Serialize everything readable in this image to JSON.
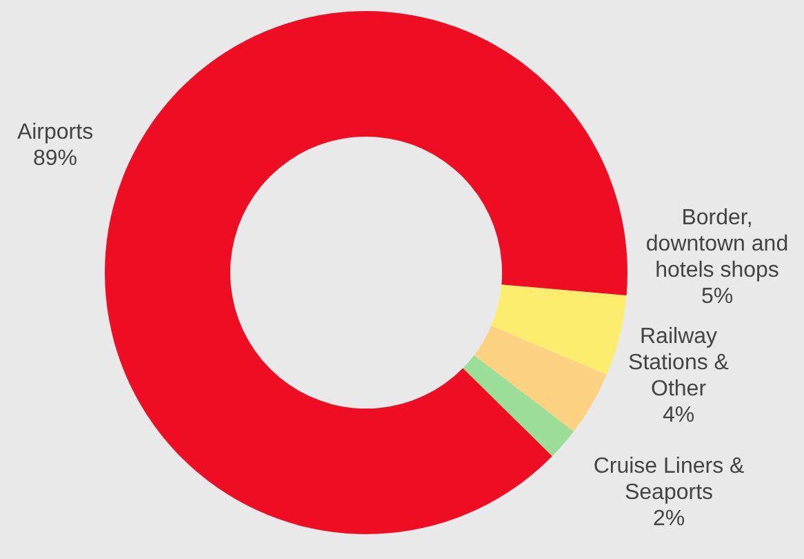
{
  "chart_data": {
    "type": "donut",
    "categories": [
      "Border, downtown and hotels shops",
      "Railway Stations & Other",
      "Cruise Liners & Seaports",
      "Airports"
    ],
    "values": [
      5,
      4,
      2,
      89
    ],
    "colors": [
      "#fded6f",
      "#fdd283",
      "#9ade98",
      "#ee0d22"
    ],
    "value_labels": [
      "5%",
      "4%",
      "2%",
      "89%"
    ],
    "legend": false
  }
}
